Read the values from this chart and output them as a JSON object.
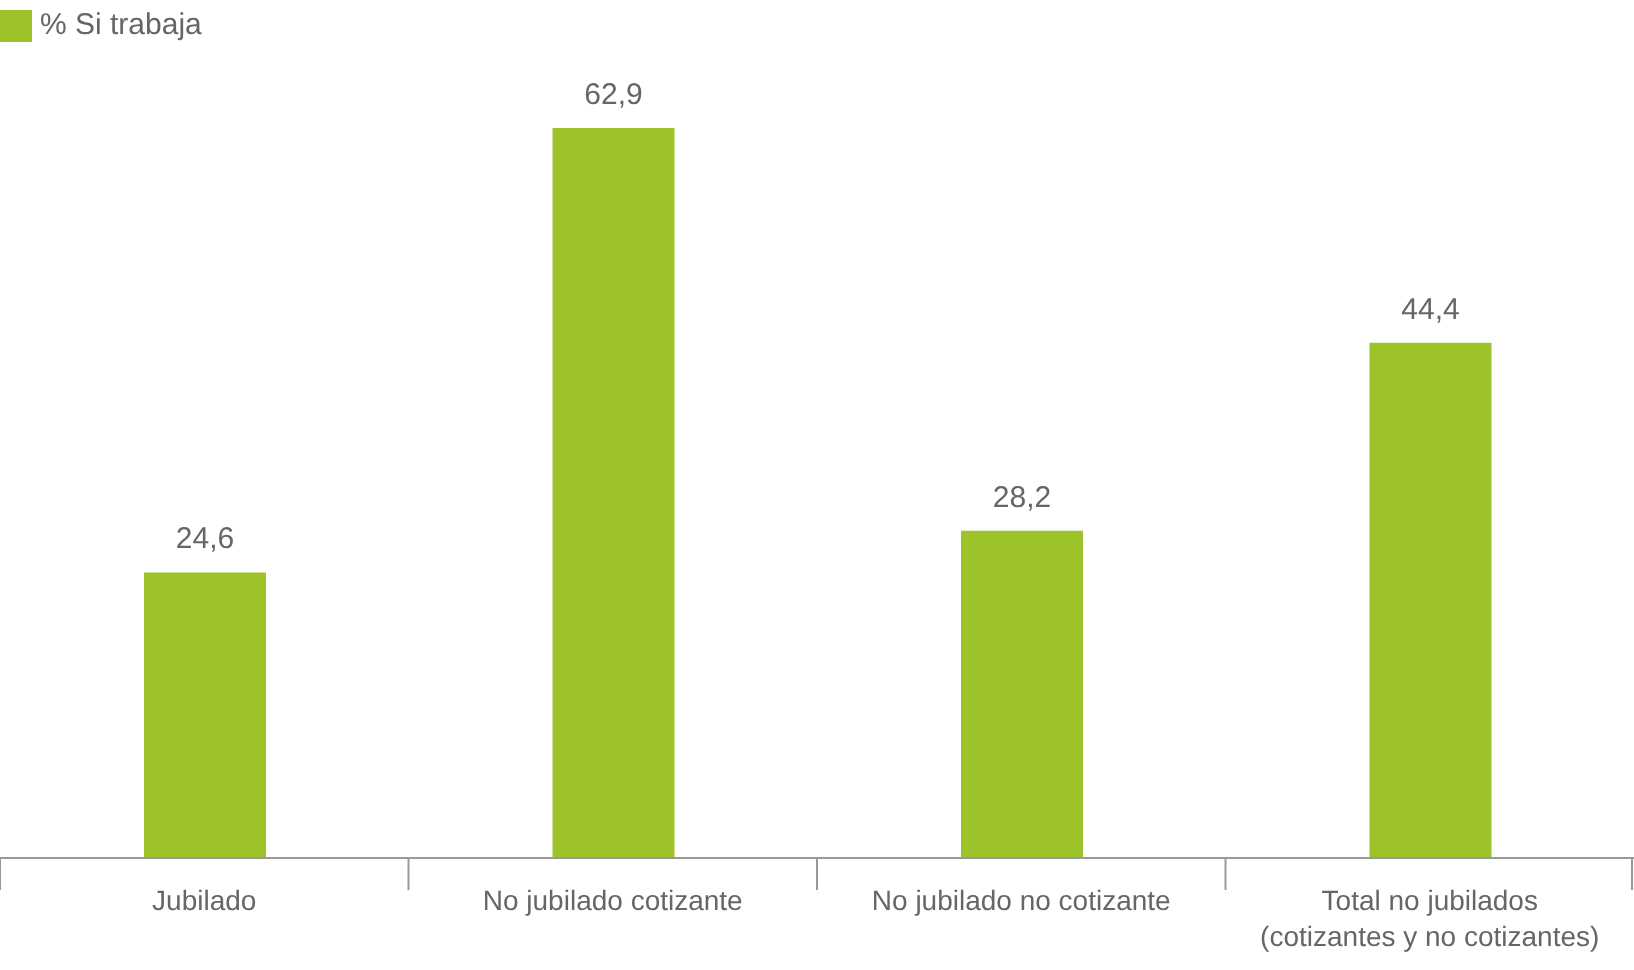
{
  "chart_data": {
    "type": "bar",
    "categories": [
      "Jubilado",
      "No jubilado cotizante",
      "No jubilado no cotizante",
      "Total no jubilados (cotizantes y no cotizantes)"
    ],
    "series": [
      {
        "name": "% Si trabaja",
        "color": "#9dc32a",
        "values": [
          24.6,
          62.9,
          28.2,
          44.4
        ],
        "value_labels": [
          "24,6",
          "62,9",
          "28,2",
          "44,4"
        ]
      }
    ],
    "legend": "top left"
  }
}
